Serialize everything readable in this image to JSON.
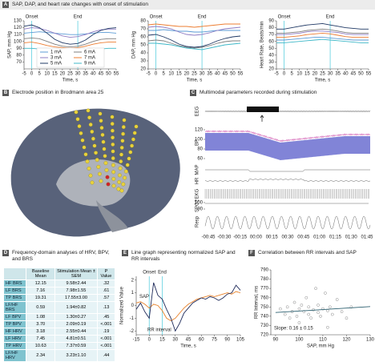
{
  "panels": [
    {
      "label": "A",
      "title": "SAP, DAP, and heart rate changes with onset of stimulation"
    },
    {
      "label": "B",
      "title": "Electrode position in Brodmann area 25"
    },
    {
      "label": "C",
      "title": "Multimodal parameters recorded during stimulation"
    },
    {
      "label": "D",
      "title": "Frequency-domain analyses of HRV, BPV, and BRS"
    },
    {
      "label": "E",
      "title": "Line graph representing normalized SAP and RR intervals"
    },
    {
      "label": "F",
      "title": "Correlation between RR intervals and SAP"
    }
  ],
  "chart_data": [
    {
      "type": "line",
      "xlabel": "Time, s",
      "ylabel": "SAP, mm Hg",
      "x": [
        -5,
        0,
        5,
        10,
        15,
        20,
        25,
        30,
        35,
        40,
        45,
        50,
        55
      ],
      "xlim": [
        -5,
        55
      ],
      "xticks": [
        -5,
        0,
        5,
        10,
        15,
        20,
        25,
        30,
        35,
        40,
        45,
        50,
        55
      ],
      "ylim": [
        60,
        130
      ],
      "yticks": [
        70,
        80,
        90,
        100,
        110,
        120,
        130
      ],
      "events": [
        {
          "value": 0,
          "label": "Onset"
        },
        {
          "value": 30,
          "label": "End"
        }
      ],
      "legend": true,
      "series": [
        {
          "name": "1 mA",
          "color": "#5b9bd5",
          "values": [
            112,
            113,
            114,
            113,
            112,
            111,
            110,
            110,
            111,
            112,
            113,
            113,
            112
          ]
        },
        {
          "name": "3 mA",
          "color": "#8e7cc3",
          "values": [
            118,
            120,
            119,
            116,
            112,
            108,
            106,
            107,
            110,
            114,
            117,
            118,
            118
          ]
        },
        {
          "name": "5 mA",
          "color": "#1f3864",
          "values": [
            122,
            124,
            120,
            112,
            103,
            98,
            96,
            97,
            102,
            110,
            116,
            119,
            120
          ]
        },
        {
          "name": "6 mA",
          "color": "#7f7f7f",
          "values": [
            104,
            105,
            104,
            100,
            96,
            93,
            92,
            93,
            96,
            100,
            103,
            104,
            104
          ]
        },
        {
          "name": "7 mA",
          "color": "#ed7d31",
          "values": [
            98,
            99,
            97,
            94,
            92,
            91,
            90,
            91,
            93,
            96,
            98,
            99,
            99
          ]
        },
        {
          "name": "9 mA",
          "color": "#3fb8c8",
          "values": [
            90,
            90,
            89,
            87,
            85,
            84,
            83,
            84,
            86,
            88,
            89,
            90,
            90
          ]
        }
      ]
    },
    {
      "type": "line",
      "xlabel": "Time, s",
      "ylabel": "DAP, mm Hg",
      "x": [
        -5,
        0,
        5,
        10,
        15,
        20,
        25,
        30,
        35,
        40,
        45,
        50,
        55
      ],
      "xlim": [
        -5,
        55
      ],
      "xticks": [
        -5,
        0,
        5,
        10,
        15,
        20,
        25,
        30,
        35,
        40,
        45,
        50,
        55
      ],
      "ylim": [
        20,
        80
      ],
      "yticks": [
        20,
        30,
        40,
        50,
        60,
        70,
        80
      ],
      "events": [
        {
          "value": 0,
          "label": "Onset"
        },
        {
          "value": 30,
          "label": "End"
        }
      ],
      "series": [
        {
          "color": "#5b9bd5",
          "values": [
            68,
            68,
            69,
            68,
            67,
            67,
            66,
            66,
            67,
            68,
            68,
            68,
            68
          ]
        },
        {
          "color": "#8e7cc3",
          "values": [
            72,
            73,
            72,
            70,
            66,
            63,
            62,
            63,
            65,
            68,
            70,
            71,
            72
          ]
        },
        {
          "color": "#1f3864",
          "values": [
            62,
            63,
            60,
            56,
            51,
            48,
            47,
            48,
            51,
            55,
            58,
            60,
            61
          ]
        },
        {
          "color": "#7f7f7f",
          "values": [
            55,
            56,
            55,
            52,
            49,
            47,
            46,
            47,
            49,
            52,
            54,
            55,
            55
          ]
        },
        {
          "color": "#ed7d31",
          "values": [
            75,
            76,
            75,
            74,
            73,
            73,
            72,
            73,
            74,
            75,
            76,
            76,
            76
          ]
        },
        {
          "color": "#3fb8c8",
          "values": [
            52,
            52,
            51,
            50,
            48,
            46,
            45,
            44,
            46,
            48,
            50,
            51,
            52
          ]
        }
      ]
    },
    {
      "type": "line",
      "xlabel": "Time, s",
      "ylabel": "Heart Rate, Beats/min",
      "x": [
        -5,
        0,
        5,
        10,
        15,
        20,
        25,
        30,
        35,
        40,
        45,
        50,
        55
      ],
      "xlim": [
        -5,
        55
      ],
      "xticks": [
        -5,
        0,
        5,
        10,
        15,
        20,
        25,
        30,
        35,
        40,
        45,
        50,
        55
      ],
      "ylim": [
        20,
        90
      ],
      "yticks": [
        20,
        30,
        40,
        50,
        60,
        70,
        80,
        90
      ],
      "events": [
        {
          "value": 0,
          "label": "Onset"
        },
        {
          "value": 30,
          "label": "End"
        }
      ],
      "series": [
        {
          "color": "#5b9bd5",
          "values": [
            62,
            62,
            63,
            64,
            65,
            66,
            66,
            65,
            64,
            63,
            62,
            62,
            62
          ]
        },
        {
          "color": "#8e7cc3",
          "values": [
            70,
            70,
            71,
            72,
            74,
            75,
            75,
            74,
            73,
            71,
            70,
            70,
            70
          ]
        },
        {
          "color": "#1f3864",
          "values": [
            78,
            78,
            80,
            82,
            84,
            85,
            86,
            84,
            82,
            80,
            79,
            78,
            78
          ]
        },
        {
          "color": "#7f7f7f",
          "values": [
            72,
            72,
            73,
            74,
            76,
            77,
            78,
            77,
            75,
            73,
            72,
            72,
            72
          ]
        },
        {
          "color": "#ed7d31",
          "values": [
            66,
            66,
            67,
            68,
            70,
            71,
            72,
            71,
            69,
            67,
            66,
            66,
            66
          ]
        },
        {
          "color": "#3fb8c8",
          "values": [
            58,
            58,
            59,
            60,
            61,
            62,
            63,
            62,
            61,
            60,
            59,
            58,
            58
          ]
        }
      ]
    },
    {
      "type": "line",
      "xlabel": "Time, s",
      "ylabel": "Normalized Value",
      "x": [
        -15,
        -10,
        -5,
        0,
        5,
        10,
        15,
        20,
        25,
        30,
        35,
        40,
        45,
        50,
        55,
        60,
        65,
        70,
        75,
        80,
        85,
        90,
        95,
        100,
        105
      ],
      "xlim": [
        -15,
        105
      ],
      "xticks": [
        -15,
        0,
        15,
        30,
        45,
        60,
        75,
        90,
        105
      ],
      "ylim": [
        -2.3,
        2.3
      ],
      "yticks": [
        -2,
        -1,
        0,
        1,
        2
      ],
      "events": [
        {
          "value": 0,
          "label": "Onset"
        },
        {
          "value": 15,
          "label": "End"
        }
      ],
      "series_labels": true,
      "series": [
        {
          "name": "SAP",
          "color": "#e8822a",
          "values": [
            0.2,
            0.3,
            0.1,
            -0.2,
            0.1,
            0,
            -0.4,
            -1.0,
            -1.2,
            -1.0,
            -0.6,
            -0.2,
            0.1,
            0.3,
            0.5,
            0.6,
            0.7,
            0.8,
            0.7,
            0.8,
            0.9,
            1.0,
            0.9,
            1.1,
            1.0
          ]
        },
        {
          "name": "RR interval",
          "color": "#1f2a5a",
          "values": [
            -0.3,
            0.2,
            -0.5,
            -1.0,
            1.8,
            0.8,
            0.5,
            -0.3,
            -1.0,
            -2.0,
            -1.4,
            -0.6,
            -0.2,
            0.2,
            0.4,
            0.6,
            0.5,
            0.7,
            0.6,
            0.4,
            0.6,
            0.9,
            1.0,
            1.6,
            1.2
          ]
        }
      ]
    },
    {
      "type": "scatter",
      "xlabel": "SAP, mm Hg",
      "ylabel": "RR Interval, ms",
      "xlim": [
        88,
        130
      ],
      "xticks": [
        90,
        100,
        110,
        120,
        130
      ],
      "ylim": [
        720,
        790
      ],
      "yticks": [
        720,
        730,
        740,
        750,
        760,
        770,
        780,
        790
      ],
      "color": "#8a8a8a",
      "annotation": "Slope: 0.16 ± 0.15",
      "x": [
        92,
        94,
        95,
        96,
        97,
        98,
        99,
        100,
        100,
        101,
        102,
        103,
        104,
        104,
        105,
        106,
        107,
        108,
        108,
        109,
        110,
        111,
        112,
        112,
        113,
        114,
        116,
        118,
        120,
        122
      ],
      "values": [
        748,
        742,
        750,
        738,
        745,
        755,
        740,
        748,
        733,
        752,
        745,
        760,
        742,
        750,
        738,
        747,
        770,
        744,
        752,
        740,
        748,
        765,
        746,
        728,
        750,
        742,
        758,
        745,
        738,
        750
      ],
      "fit": {
        "color": "#2b5f6f",
        "x": [
          90,
          130
        ],
        "y": [
          744,
          750.4
        ]
      }
    }
  ],
  "multimodal": {
    "channels": [
      "EEG",
      "BP",
      "MAP",
      "HR",
      "EKG",
      "SPO2",
      "Resp"
    ],
    "bp_ticks": [
      120,
      100,
      80,
      60
    ],
    "spo2_ticks": [
      100,
      90
    ],
    "x_labels": [
      "-00:45",
      "-00:30",
      "-00:15",
      "00:00",
      "00:15",
      "00:30",
      "00:45",
      "01:00",
      "01:15",
      "01:30",
      "01:45"
    ]
  },
  "table": {
    "header": [
      "Baseline Mean",
      "Stimulation Mean ± SEM",
      "P Value"
    ],
    "rows": [
      [
        "HF BRS",
        "12.15",
        "9.58±2.44",
        ".32"
      ],
      [
        "LF BRS",
        "7.16",
        "7.98±1.55",
        ".61"
      ],
      [
        "TP BRS",
        "19.31",
        "17.55±3.00",
        ".57"
      ],
      [
        "LF/HF BRS",
        "0.59",
        "1.94±0.82",
        ".13"
      ],
      [
        "LF BPV",
        "1.08",
        "1.30±0.27",
        ".45"
      ],
      [
        "TP BPV",
        "3.70",
        "2.09±0.19",
        "<.001"
      ],
      [
        "HF HRV",
        "3.18",
        "2.55±0.44",
        ".19"
      ],
      [
        "LF HRV",
        "7.45",
        "4.81±0.51",
        "<.001"
      ],
      [
        "TP HRV",
        "10.63",
        "7.37±0.59",
        "<.001"
      ],
      [
        "LF/HF HRV",
        "2.34",
        "3.23±1.10",
        ".44"
      ]
    ]
  }
}
